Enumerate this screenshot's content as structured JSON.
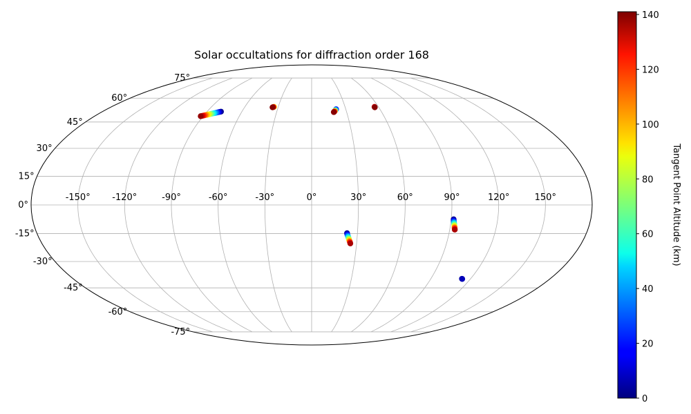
{
  "chart_data": {
    "type": "scatter",
    "title": "Solar occultations for diffraction order 168",
    "projection": "mollweide",
    "grid": true,
    "lon_ticks": [
      -150,
      -120,
      -90,
      -60,
      -30,
      0,
      30,
      60,
      90,
      120,
      150
    ],
    "lat_ticks": [
      -75,
      -60,
      -45,
      -30,
      -15,
      0,
      15,
      30,
      45,
      60,
      75
    ],
    "lon_tick_labels": [
      "-150°",
      "-120°",
      "-90°",
      "-60°",
      "-30°",
      "0°",
      "30°",
      "60°",
      "90°",
      "120°",
      "150°"
    ],
    "lat_tick_labels": [
      "-75°",
      "-60°",
      "-45°",
      "-30°",
      "-15°",
      "0°",
      "15°",
      "30°",
      "45°",
      "60°",
      "75°"
    ],
    "colorbar": {
      "label": "Tangent Point Altitude (km)",
      "range": [
        0,
        141
      ],
      "ticks": [
        0,
        20,
        40,
        60,
        80,
        100,
        120,
        140
      ],
      "tick_labels": [
        "0",
        "20",
        "40",
        "60",
        "80",
        "100",
        "120",
        "140"
      ],
      "colormap": "jet"
    },
    "series": [
      {
        "points": [
          {
            "lon": -78,
            "lat": 51.3,
            "alt": 2
          },
          {
            "lon": -79,
            "lat": 51.1,
            "alt": 10
          },
          {
            "lon": -80,
            "lat": 50.9,
            "alt": 20
          },
          {
            "lon": -81,
            "lat": 50.7,
            "alt": 30
          },
          {
            "lon": -82,
            "lat": 50.5,
            "alt": 40
          },
          {
            "lon": -83,
            "lat": 50.3,
            "alt": 50
          },
          {
            "lon": -84,
            "lat": 50.1,
            "alt": 60
          },
          {
            "lon": -85,
            "lat": 49.9,
            "alt": 70
          },
          {
            "lon": -86,
            "lat": 49.7,
            "alt": 80
          },
          {
            "lon": -87,
            "lat": 49.5,
            "alt": 90
          },
          {
            "lon": -88,
            "lat": 49.3,
            "alt": 100
          },
          {
            "lon": -89,
            "lat": 49.1,
            "alt": 110
          },
          {
            "lon": -90,
            "lat": 48.9,
            "alt": 120
          },
          {
            "lon": -91,
            "lat": 48.7,
            "alt": 130
          },
          {
            "lon": -92,
            "lat": 48.5,
            "alt": 138
          }
        ]
      },
      {
        "points": [
          {
            "lon": -33.8,
            "lat": 54.3,
            "alt": 90
          },
          {
            "lon": -34.2,
            "lat": 54.2,
            "alt": 120
          },
          {
            "lon": -34.6,
            "lat": 54.1,
            "alt": 135
          },
          {
            "lon": -35,
            "lat": 54,
            "alt": 140
          }
        ]
      },
      {
        "points": [
          {
            "lon": 21.5,
            "lat": 52.8,
            "alt": 20
          },
          {
            "lon": 21,
            "lat": 52.4,
            "alt": 40
          },
          {
            "lon": 20.5,
            "lat": 52,
            "alt": 70
          },
          {
            "lon": 20,
            "lat": 51.6,
            "alt": 100
          },
          {
            "lon": 19.5,
            "lat": 51.3,
            "alt": 125
          },
          {
            "lon": 19,
            "lat": 51,
            "alt": 140
          }
        ]
      },
      {
        "points": [
          {
            "lon": 56.5,
            "lat": 54.3,
            "alt": 130
          },
          {
            "lon": 56.5,
            "lat": 54,
            "alt": 140
          }
        ]
      },
      {
        "points": [
          {
            "lon": 23.2,
            "lat": -14.8,
            "alt": 3
          },
          {
            "lon": 23.4,
            "lat": -15.4,
            "alt": 15
          },
          {
            "lon": 23.7,
            "lat": -16,
            "alt": 30
          },
          {
            "lon": 24,
            "lat": -16.6,
            "alt": 45
          },
          {
            "lon": 24.3,
            "lat": -17.2,
            "alt": 60
          },
          {
            "lon": 24.6,
            "lat": -17.8,
            "alt": 75
          },
          {
            "lon": 24.9,
            "lat": -18.4,
            "alt": 90
          },
          {
            "lon": 25.2,
            "lat": -19,
            "alt": 105
          },
          {
            "lon": 25.5,
            "lat": -19.6,
            "alt": 120
          },
          {
            "lon": 25.8,
            "lat": -20.2,
            "alt": 135
          }
        ]
      },
      {
        "points": [
          {
            "lon": 91.6,
            "lat": -7.5,
            "alt": 2
          },
          {
            "lon": 91.7,
            "lat": -8.1,
            "alt": 15
          },
          {
            "lon": 91.9,
            "lat": -8.7,
            "alt": 30
          },
          {
            "lon": 92.1,
            "lat": -9.3,
            "alt": 45
          },
          {
            "lon": 92.3,
            "lat": -9.9,
            "alt": 60
          },
          {
            "lon": 92.5,
            "lat": -10.5,
            "alt": 75
          },
          {
            "lon": 92.7,
            "lat": -11.1,
            "alt": 90
          },
          {
            "lon": 92.9,
            "lat": -11.7,
            "alt": 105
          },
          {
            "lon": 93.1,
            "lat": -12.3,
            "alt": 120
          },
          {
            "lon": 93.3,
            "lat": -12.9,
            "alt": 135
          }
        ]
      },
      {
        "points": [
          {
            "lon": 113.5,
            "lat": -39.7,
            "alt": 3
          },
          {
            "lon": 113.8,
            "lat": -39.8,
            "alt": 8
          }
        ]
      }
    ]
  }
}
